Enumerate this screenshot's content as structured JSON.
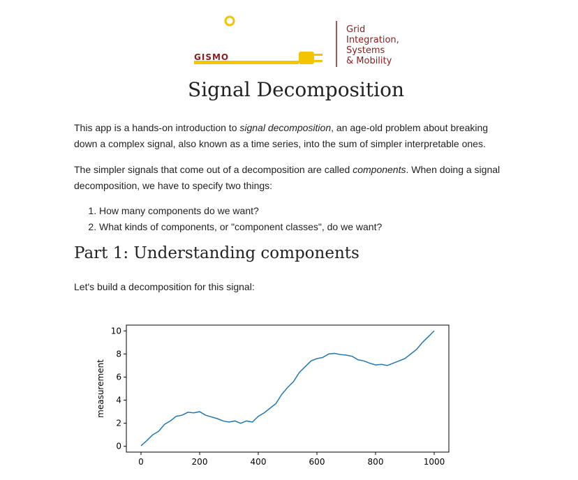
{
  "logo": {
    "name": "GISMO",
    "tagline": [
      "Grid",
      "Integration,",
      "Systems",
      "& Mobility"
    ]
  },
  "title": "Signal Decomposition",
  "paragraphs": [
    [
      "This app is a hands-on introduction to ",
      "signal decomposition",
      ", an age-old problem about breaking down a complex signal, also known as a time series, into the sum of simpler interpretable ones."
    ],
    [
      "The simpler signals that come out of a decomposition are called ",
      "components",
      ". When doing a signal decomposition, we have to specify two things:"
    ]
  ],
  "list": [
    "How many components do we want?",
    "What kinds of components, or \"component classes\", do we want?"
  ],
  "section_heading": "Part 1: Understanding components",
  "intro": "Let's build a decomposition for this signal:",
  "chart_data": {
    "type": "line",
    "ylabel": "measurement",
    "color": "#1f77b4",
    "x": [
      0,
      20,
      40,
      60,
      80,
      100,
      120,
      140,
      160,
      180,
      200,
      220,
      240,
      260,
      280,
      300,
      320,
      340,
      360,
      380,
      400,
      420,
      440,
      460,
      480,
      500,
      520,
      540,
      560,
      580,
      600,
      620,
      640,
      660,
      680,
      700,
      720,
      740,
      760,
      780,
      800,
      820,
      840,
      860,
      880,
      900,
      920,
      940,
      960,
      980,
      1000
    ],
    "values": [
      0.05,
      0.5,
      1.0,
      1.3,
      1.9,
      2.2,
      2.6,
      2.7,
      2.95,
      2.9,
      3.0,
      2.7,
      2.55,
      2.4,
      2.2,
      2.1,
      2.2,
      2.0,
      2.2,
      2.1,
      2.6,
      2.9,
      3.3,
      3.7,
      4.5,
      5.1,
      5.6,
      6.4,
      6.9,
      7.4,
      7.6,
      7.7,
      8.0,
      8.05,
      7.95,
      7.9,
      7.8,
      7.5,
      7.4,
      7.2,
      7.05,
      7.1,
      7.0,
      7.2,
      7.4,
      7.6,
      8.0,
      8.4,
      9.0,
      9.5,
      10.0
    ],
    "xlim": [
      -50,
      1050
    ],
    "xticks": [
      0,
      200,
      400,
      600,
      800,
      1000
    ],
    "ylim": [
      -0.5,
      10.5
    ],
    "yticks": [
      0,
      2,
      4,
      6,
      8,
      10
    ]
  }
}
